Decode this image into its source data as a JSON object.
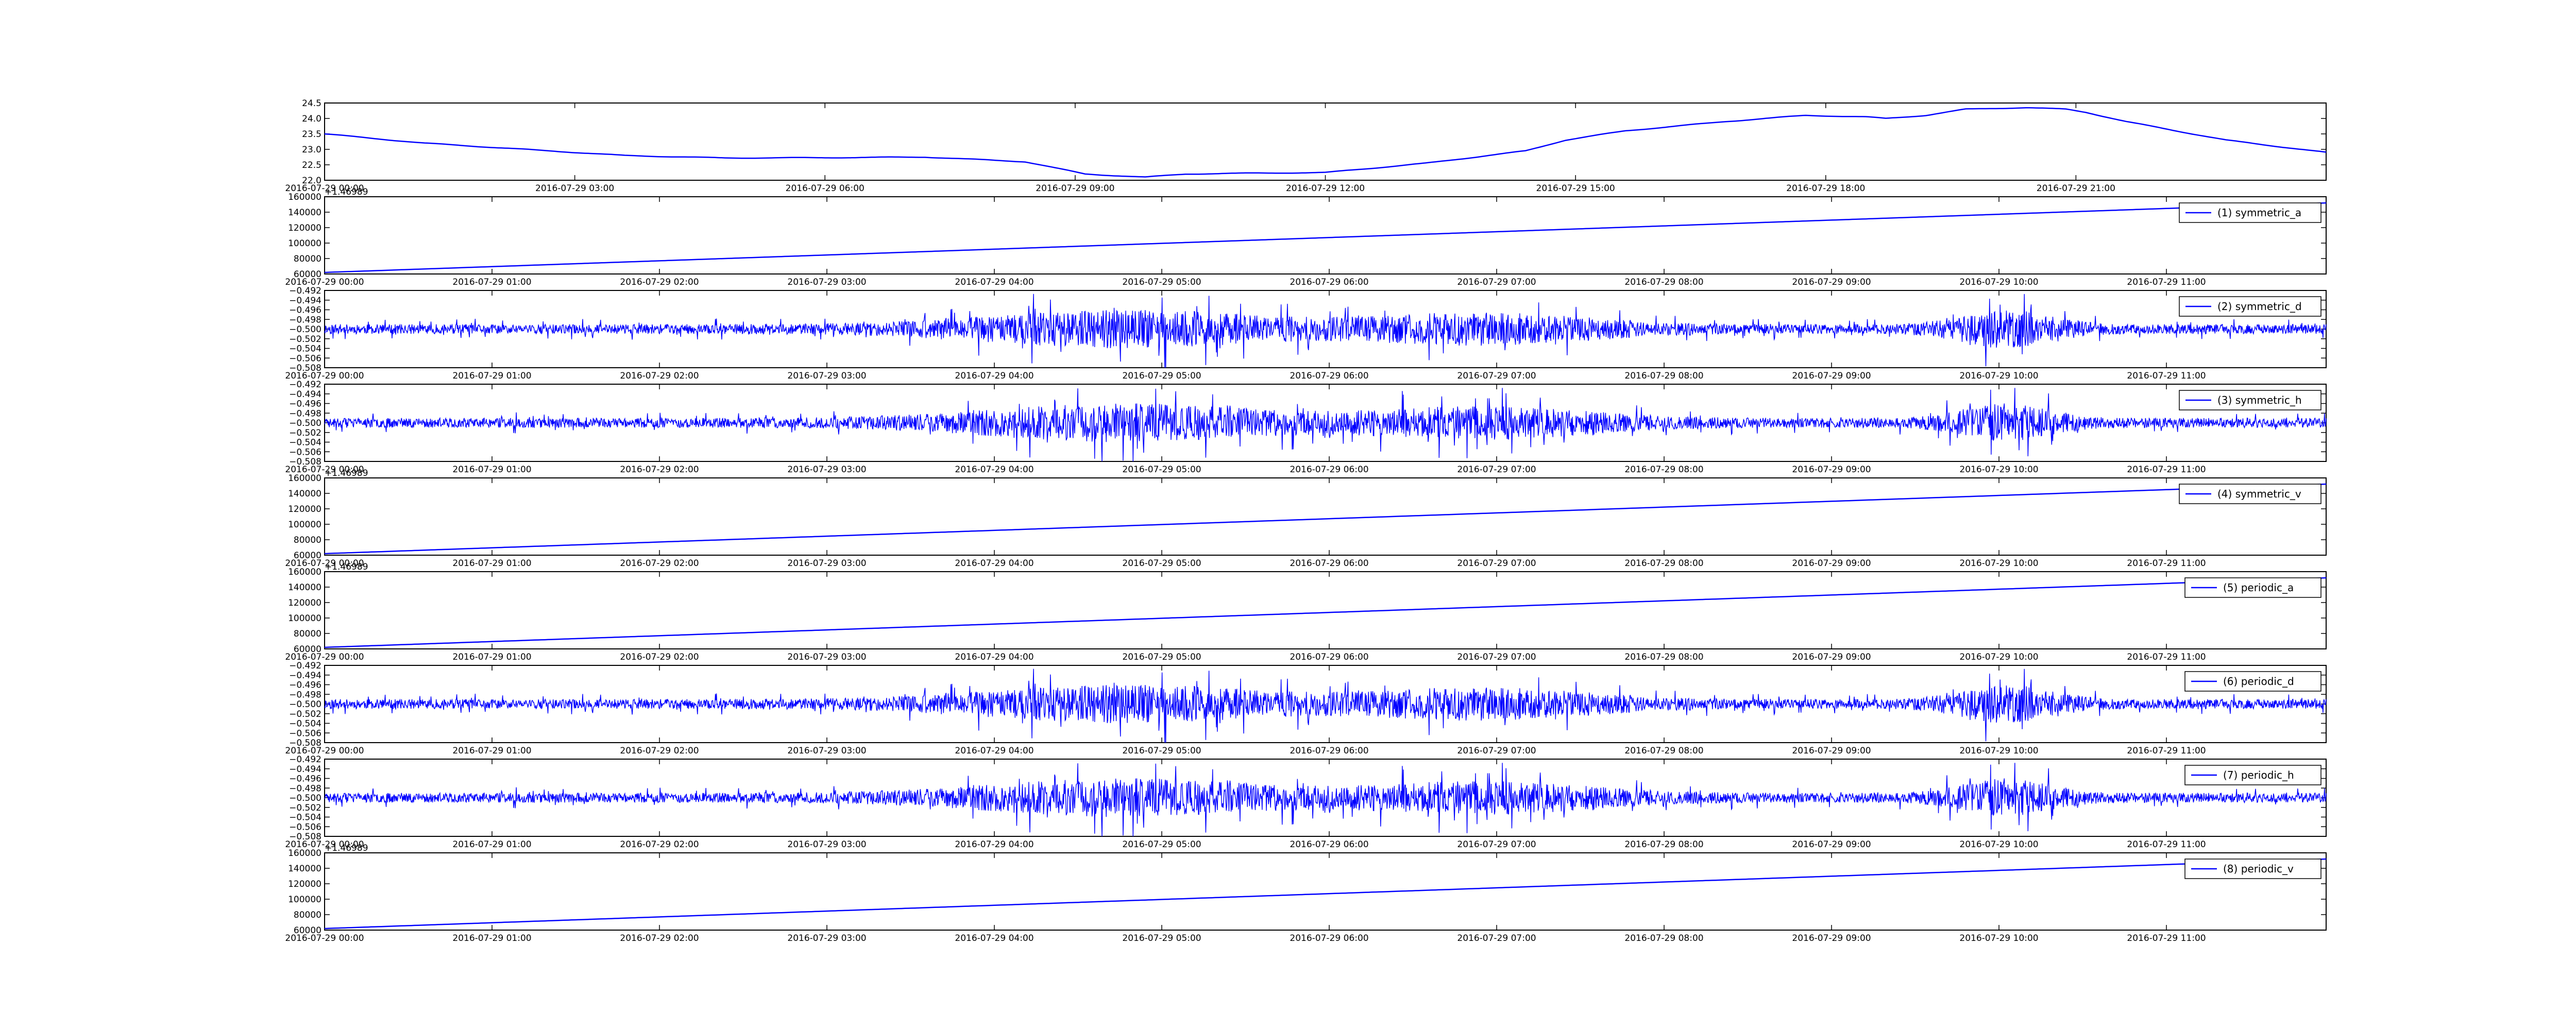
{
  "line_color": "#0000ff",
  "frame_color": "#000000",
  "background": "#ffffff",
  "chart_data": [
    {
      "type": "line",
      "title": "",
      "xlabel": "",
      "ylabel": "",
      "ylim": [
        22.0,
        24.5
      ],
      "yticks": [
        "22.0",
        "22.5",
        "23.0",
        "23.5",
        "24.0",
        "24.5"
      ],
      "xticks": [
        "2016-07-29 00:00",
        "2016-07-29 03:00",
        "2016-07-29 06:00",
        "2016-07-29 09:00",
        "2016-07-29 12:00",
        "2016-07-29 15:00",
        "2016-07-29 18:00",
        "2016-07-29 21:00"
      ],
      "offset_text": "",
      "legend": "",
      "shape": "profile",
      "x": [
        0.0,
        0.05,
        0.1,
        0.15,
        0.2,
        0.25,
        0.3,
        0.35,
        0.38,
        0.41,
        0.43,
        0.45,
        0.5,
        0.55,
        0.6,
        0.62,
        0.65,
        0.7,
        0.74,
        0.77,
        0.78,
        0.8,
        0.82,
        0.85,
        0.87,
        0.88,
        0.9,
        0.95,
        1.0
      ],
      "values": [
        23.5,
        23.2,
        23.0,
        22.8,
        22.72,
        22.73,
        22.75,
        22.6,
        22.2,
        22.1,
        22.2,
        22.22,
        22.25,
        22.55,
        22.95,
        23.3,
        23.6,
        23.9,
        24.1,
        24.05,
        24.0,
        24.1,
        24.3,
        24.35,
        24.3,
        24.2,
        23.9,
        23.3,
        22.9
      ]
    },
    {
      "type": "line",
      "title": "",
      "xlabel": "",
      "ylabel": "",
      "ylim": [
        60000,
        160000
      ],
      "yticks": [
        "60000",
        "80000",
        "100000",
        "120000",
        "140000",
        "160000"
      ],
      "xticks": [
        "2016-07-29 00:00",
        "2016-07-29 01:00",
        "2016-07-29 02:00",
        "2016-07-29 03:00",
        "2016-07-29 04:00",
        "2016-07-29 05:00",
        "2016-07-29 06:00",
        "2016-07-29 07:00",
        "2016-07-29 08:00",
        "2016-07-29 09:00",
        "2016-07-29 10:00",
        "2016-07-29 11:00"
      ],
      "offset_text": "+1.46989",
      "legend": "(1) symmetric_a",
      "shape": "ramp",
      "x": [
        0,
        1
      ],
      "values": [
        62000,
        152000
      ]
    },
    {
      "type": "line",
      "title": "",
      "xlabel": "",
      "ylabel": "",
      "ylim": [
        -0.508,
        -0.492
      ],
      "yticks": [
        "−0.508",
        "−0.506",
        "−0.504",
        "−0.502",
        "−0.500",
        "−0.498",
        "−0.496",
        "−0.494",
        "−0.492"
      ],
      "xticks": [
        "2016-07-29 00:00",
        "2016-07-29 01:00",
        "2016-07-29 02:00",
        "2016-07-29 03:00",
        "2016-07-29 04:00",
        "2016-07-29 05:00",
        "2016-07-29 06:00",
        "2016-07-29 07:00",
        "2016-07-29 08:00",
        "2016-07-29 09:00",
        "2016-07-29 10:00",
        "2016-07-29 11:00"
      ],
      "offset_text": "",
      "legend": "(2) symmetric_d",
      "shape": "noise",
      "center": -0.5,
      "seed": 11
    },
    {
      "type": "line",
      "title": "",
      "xlabel": "",
      "ylabel": "",
      "ylim": [
        -0.508,
        -0.492
      ],
      "yticks": [
        "−0.508",
        "−0.506",
        "−0.504",
        "−0.502",
        "−0.500",
        "−0.498",
        "−0.496",
        "−0.494",
        "−0.492"
      ],
      "xticks": [
        "2016-07-29 00:00",
        "2016-07-29 01:00",
        "2016-07-29 02:00",
        "2016-07-29 03:00",
        "2016-07-29 04:00",
        "2016-07-29 05:00",
        "2016-07-29 06:00",
        "2016-07-29 07:00",
        "2016-07-29 08:00",
        "2016-07-29 09:00",
        "2016-07-29 10:00",
        "2016-07-29 11:00"
      ],
      "offset_text": "",
      "legend": "(3) symmetric_h",
      "shape": "noise",
      "center": -0.5,
      "seed": 23
    },
    {
      "type": "line",
      "title": "",
      "xlabel": "",
      "ylabel": "",
      "ylim": [
        60000,
        160000
      ],
      "yticks": [
        "60000",
        "80000",
        "100000",
        "120000",
        "140000",
        "160000"
      ],
      "xticks": [
        "2016-07-29 00:00",
        "2016-07-29 01:00",
        "2016-07-29 02:00",
        "2016-07-29 03:00",
        "2016-07-29 04:00",
        "2016-07-29 05:00",
        "2016-07-29 06:00",
        "2016-07-29 07:00",
        "2016-07-29 08:00",
        "2016-07-29 09:00",
        "2016-07-29 10:00",
        "2016-07-29 11:00"
      ],
      "offset_text": "+1.46989",
      "legend": "(4) symmetric_v",
      "shape": "ramp",
      "x": [
        0,
        1
      ],
      "values": [
        62000,
        152000
      ]
    },
    {
      "type": "line",
      "title": "",
      "xlabel": "",
      "ylabel": "",
      "ylim": [
        60000,
        160000
      ],
      "yticks": [
        "60000",
        "80000",
        "100000",
        "120000",
        "140000",
        "160000"
      ],
      "xticks": [
        "2016-07-29 00:00",
        "2016-07-29 01:00",
        "2016-07-29 02:00",
        "2016-07-29 03:00",
        "2016-07-29 04:00",
        "2016-07-29 05:00",
        "2016-07-29 06:00",
        "2016-07-29 07:00",
        "2016-07-29 08:00",
        "2016-07-29 09:00",
        "2016-07-29 10:00",
        "2016-07-29 11:00"
      ],
      "offset_text": "+1.46989",
      "legend": "(5) periodic_a",
      "shape": "ramp",
      "x": [
        0,
        1
      ],
      "values": [
        62000,
        152000
      ]
    },
    {
      "type": "line",
      "title": "",
      "xlabel": "",
      "ylabel": "",
      "ylim": [
        -0.508,
        -0.492
      ],
      "yticks": [
        "−0.508",
        "−0.506",
        "−0.504",
        "−0.502",
        "−0.500",
        "−0.498",
        "−0.496",
        "−0.494",
        "−0.492"
      ],
      "xticks": [
        "2016-07-29 00:00",
        "2016-07-29 01:00",
        "2016-07-29 02:00",
        "2016-07-29 03:00",
        "2016-07-29 04:00",
        "2016-07-29 05:00",
        "2016-07-29 06:00",
        "2016-07-29 07:00",
        "2016-07-29 08:00",
        "2016-07-29 09:00",
        "2016-07-29 10:00",
        "2016-07-29 11:00"
      ],
      "offset_text": "",
      "legend": "(6) periodic_d",
      "shape": "noise",
      "center": -0.5,
      "seed": 11
    },
    {
      "type": "line",
      "title": "",
      "xlabel": "",
      "ylabel": "",
      "ylim": [
        -0.508,
        -0.492
      ],
      "yticks": [
        "−0.508",
        "−0.506",
        "−0.504",
        "−0.502",
        "−0.500",
        "−0.498",
        "−0.496",
        "−0.494",
        "−0.492"
      ],
      "xticks": [
        "2016-07-29 00:00",
        "2016-07-29 01:00",
        "2016-07-29 02:00",
        "2016-07-29 03:00",
        "2016-07-29 04:00",
        "2016-07-29 05:00",
        "2016-07-29 06:00",
        "2016-07-29 07:00",
        "2016-07-29 08:00",
        "2016-07-29 09:00",
        "2016-07-29 10:00",
        "2016-07-29 11:00"
      ],
      "offset_text": "",
      "legend": "(7) periodic_h",
      "shape": "noise",
      "center": -0.5,
      "seed": 23
    },
    {
      "type": "line",
      "title": "",
      "xlabel": "",
      "ylabel": "",
      "ylim": [
        60000,
        160000
      ],
      "yticks": [
        "60000",
        "80000",
        "100000",
        "120000",
        "140000",
        "160000"
      ],
      "xticks": [
        "2016-07-29 00:00",
        "2016-07-29 01:00",
        "2016-07-29 02:00",
        "2016-07-29 03:00",
        "2016-07-29 04:00",
        "2016-07-29 05:00",
        "2016-07-29 06:00",
        "2016-07-29 07:00",
        "2016-07-29 08:00",
        "2016-07-29 09:00",
        "2016-07-29 10:00",
        "2016-07-29 11:00"
      ],
      "offset_text": "+1.46989",
      "legend": "(8) periodic_v",
      "shape": "ramp",
      "x": [
        0,
        1
      ],
      "values": [
        62000,
        152000
      ]
    }
  ]
}
